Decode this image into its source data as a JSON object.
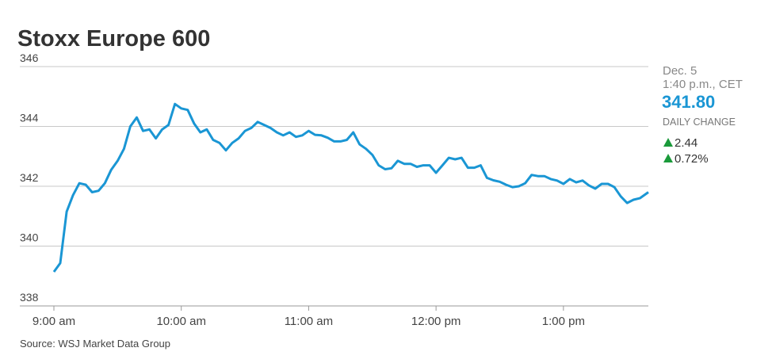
{
  "chart_data": {
    "type": "line",
    "title": "Stoxx Europe 600",
    "source": "Source: WSJ Market Data Group",
    "panel": {
      "date": "Dec. 5",
      "time": "1:40 p.m., CET",
      "last": "341.80",
      "change_label": "DAILY CHANGE",
      "change": "2.44",
      "change_pct": "0.72%"
    },
    "color": "#1a96d4",
    "x": [
      "09:00",
      "09:03",
      "09:06",
      "09:09",
      "09:12",
      "09:15",
      "09:18",
      "09:21",
      "09:24",
      "09:27",
      "09:30",
      "09:33",
      "09:36",
      "09:39",
      "09:42",
      "09:45",
      "09:48",
      "09:51",
      "09:54",
      "09:57",
      "10:00",
      "10:03",
      "10:06",
      "10:09",
      "10:12",
      "10:15",
      "10:18",
      "10:21",
      "10:24",
      "10:27",
      "10:30",
      "10:33",
      "10:36",
      "10:39",
      "10:42",
      "10:45",
      "10:48",
      "10:51",
      "10:54",
      "10:57",
      "11:00",
      "11:03",
      "11:06",
      "11:09",
      "11:12",
      "11:15",
      "11:18",
      "11:21",
      "11:24",
      "11:27",
      "11:30",
      "11:33",
      "11:36",
      "11:39",
      "11:42",
      "11:45",
      "11:48",
      "11:51",
      "11:54",
      "11:57",
      "12:00",
      "12:03",
      "12:06",
      "12:09",
      "12:12",
      "12:15",
      "12:18",
      "12:21",
      "12:24",
      "12:27",
      "12:30",
      "12:33",
      "12:36",
      "12:39",
      "12:42",
      "12:45",
      "12:48",
      "12:51",
      "12:54",
      "12:57",
      "13:00",
      "13:03",
      "13:06",
      "13:09",
      "13:12",
      "13:15",
      "13:18",
      "13:21",
      "13:24",
      "13:27",
      "13:30",
      "13:33",
      "13:36",
      "13:40"
    ],
    "values": [
      339.14,
      339.43,
      341.15,
      341.7,
      342.1,
      342.05,
      341.8,
      341.85,
      342.1,
      342.55,
      342.85,
      343.25,
      344.0,
      344.3,
      343.85,
      343.9,
      343.6,
      343.9,
      344.05,
      344.75,
      344.6,
      344.55,
      344.1,
      343.8,
      343.9,
      343.55,
      343.45,
      343.2,
      343.45,
      343.6,
      343.85,
      343.95,
      344.15,
      344.05,
      343.95,
      343.8,
      343.7,
      343.8,
      343.65,
      343.7,
      343.85,
      343.72,
      343.7,
      343.62,
      343.5,
      343.5,
      343.55,
      343.8,
      343.4,
      343.25,
      343.05,
      342.7,
      342.57,
      342.6,
      342.85,
      342.75,
      342.75,
      342.65,
      342.7,
      342.7,
      342.45,
      342.7,
      342.95,
      342.9,
      342.95,
      342.62,
      342.62,
      342.7,
      342.28,
      342.2,
      342.15,
      342.05,
      341.97,
      342.0,
      342.1,
      342.38,
      342.34,
      342.34,
      342.24,
      342.19,
      342.08,
      342.24,
      342.13,
      342.19,
      342.03,
      341.92,
      342.08,
      342.08,
      341.97,
      341.66,
      341.44,
      341.55,
      341.6,
      341.8
    ],
    "xlim": [
      "09:00",
      "13:40"
    ],
    "xticks": [
      {
        "value": "09:00",
        "label": "9:00 am"
      },
      {
        "value": "10:00",
        "label": "10:00 am"
      },
      {
        "value": "11:00",
        "label": "11:00 am"
      },
      {
        "value": "12:00",
        "label": "12:00 pm"
      },
      {
        "value": "13:00",
        "label": "1:00 pm"
      }
    ],
    "ylim": [
      338,
      346
    ],
    "yticks": [
      338,
      340,
      342,
      344,
      346
    ],
    "grid": true
  }
}
